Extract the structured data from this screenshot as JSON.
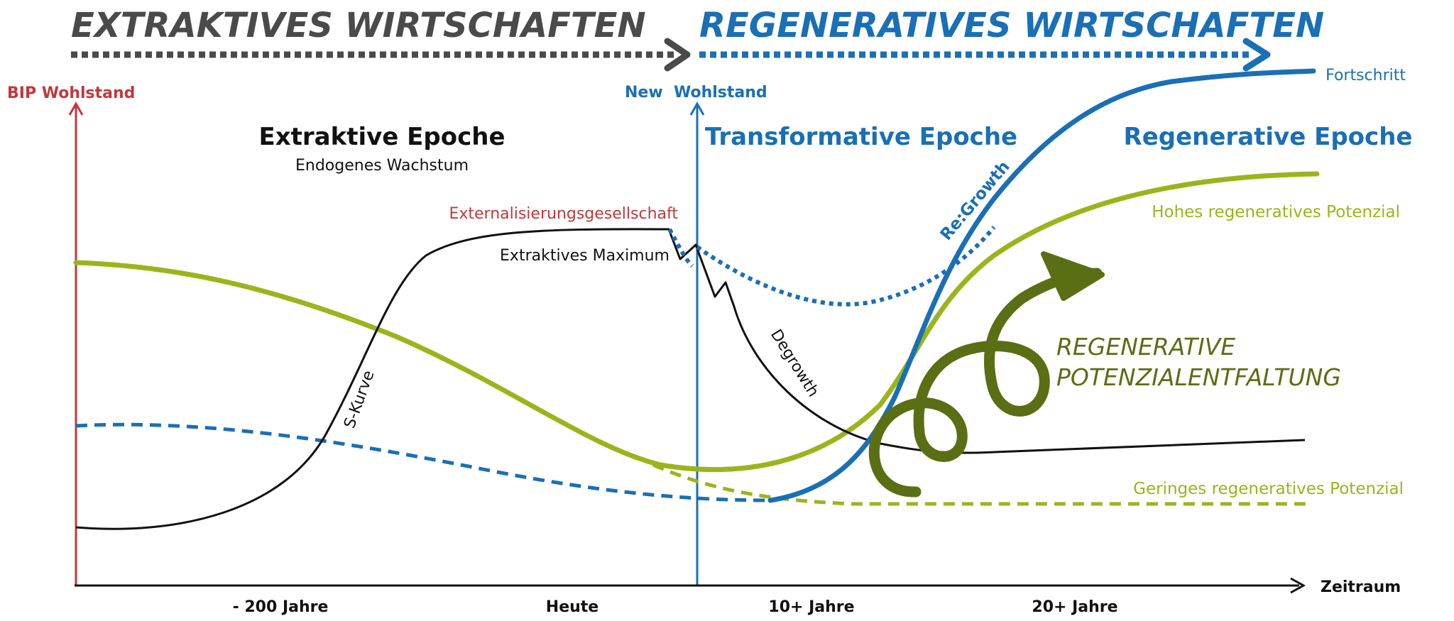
{
  "banner": {
    "left_title": "EXTRAKTIVES WIRTSCHAFTEN",
    "right_title": "REGENERATIVES WIRTSCHAFTEN"
  },
  "axes": {
    "left_label": "BIP Wohlstand",
    "center_label": "New  Wohlstand",
    "x_label": "Zeitraum",
    "ticks": [
      "- 200 Jahre",
      "Heute",
      "10+ Jahre",
      "20+ Jahre"
    ]
  },
  "epochs": {
    "extraktive_title": "Extraktive Epoche",
    "extraktive_subtitle": "Endogenes Wachstum",
    "transformative_title": "Transformative Epoche",
    "regenerative_title": "Regenerative Epoche"
  },
  "labels": {
    "externalisierung": "Externalisierungsgesellschaft",
    "extraktives_maximum": "Extraktives Maximum",
    "s_kurve": "S-Kurve",
    "degrowth": "Degrowth",
    "regrowth": "Re:Growth",
    "fortschritt": "Fortschritt",
    "hohes_potenzial": "Hohes regeneratives Potenzial",
    "geringes_potenzial": "Geringes regeneratives Potenzial",
    "regen_line1": "REGENERATIVE",
    "regen_line2": "POTENZIALENTFALTUNG"
  },
  "colors": {
    "gray": "#4a4a4a",
    "blue": "#1a6fb5",
    "red": "#c0393b",
    "green": "#9ab51c",
    "dark_green": "#5a6e14",
    "black": "#111111"
  }
}
